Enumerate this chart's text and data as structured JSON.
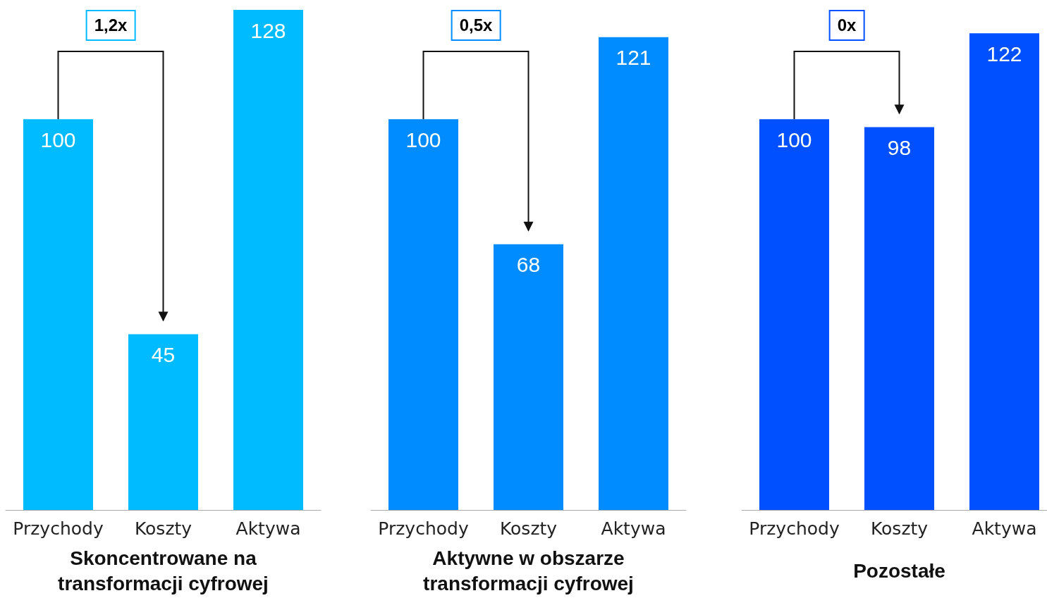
{
  "chart_data": [
    {
      "type": "bar",
      "xlabel": "Skoncentrowane na transformacji cyfrowej",
      "categories": [
        "Przychody",
        "Koszty",
        "Aktywa"
      ],
      "values": [
        100,
        45,
        128
      ],
      "color": "#00bbff",
      "data_labels": true,
      "annotations": [
        "1,2x"
      ]
    },
    {
      "type": "bar",
      "xlabel": "Aktywne w obszarze transformacji cyfrowej",
      "categories": [
        "Przychody",
        "Koszty",
        "Aktywa"
      ],
      "values": [
        100,
        68,
        121
      ],
      "color": "#008cff",
      "data_labels": true,
      "annotations": [
        "0,5x"
      ]
    },
    {
      "type": "bar",
      "xlabel": "Pozostałe",
      "categories": [
        "Przychody",
        "Koszty",
        "Aktywa"
      ],
      "values": [
        100,
        98,
        122
      ],
      "color": "#0050ff",
      "data_labels": true,
      "annotations": [
        "0x"
      ]
    }
  ]
}
